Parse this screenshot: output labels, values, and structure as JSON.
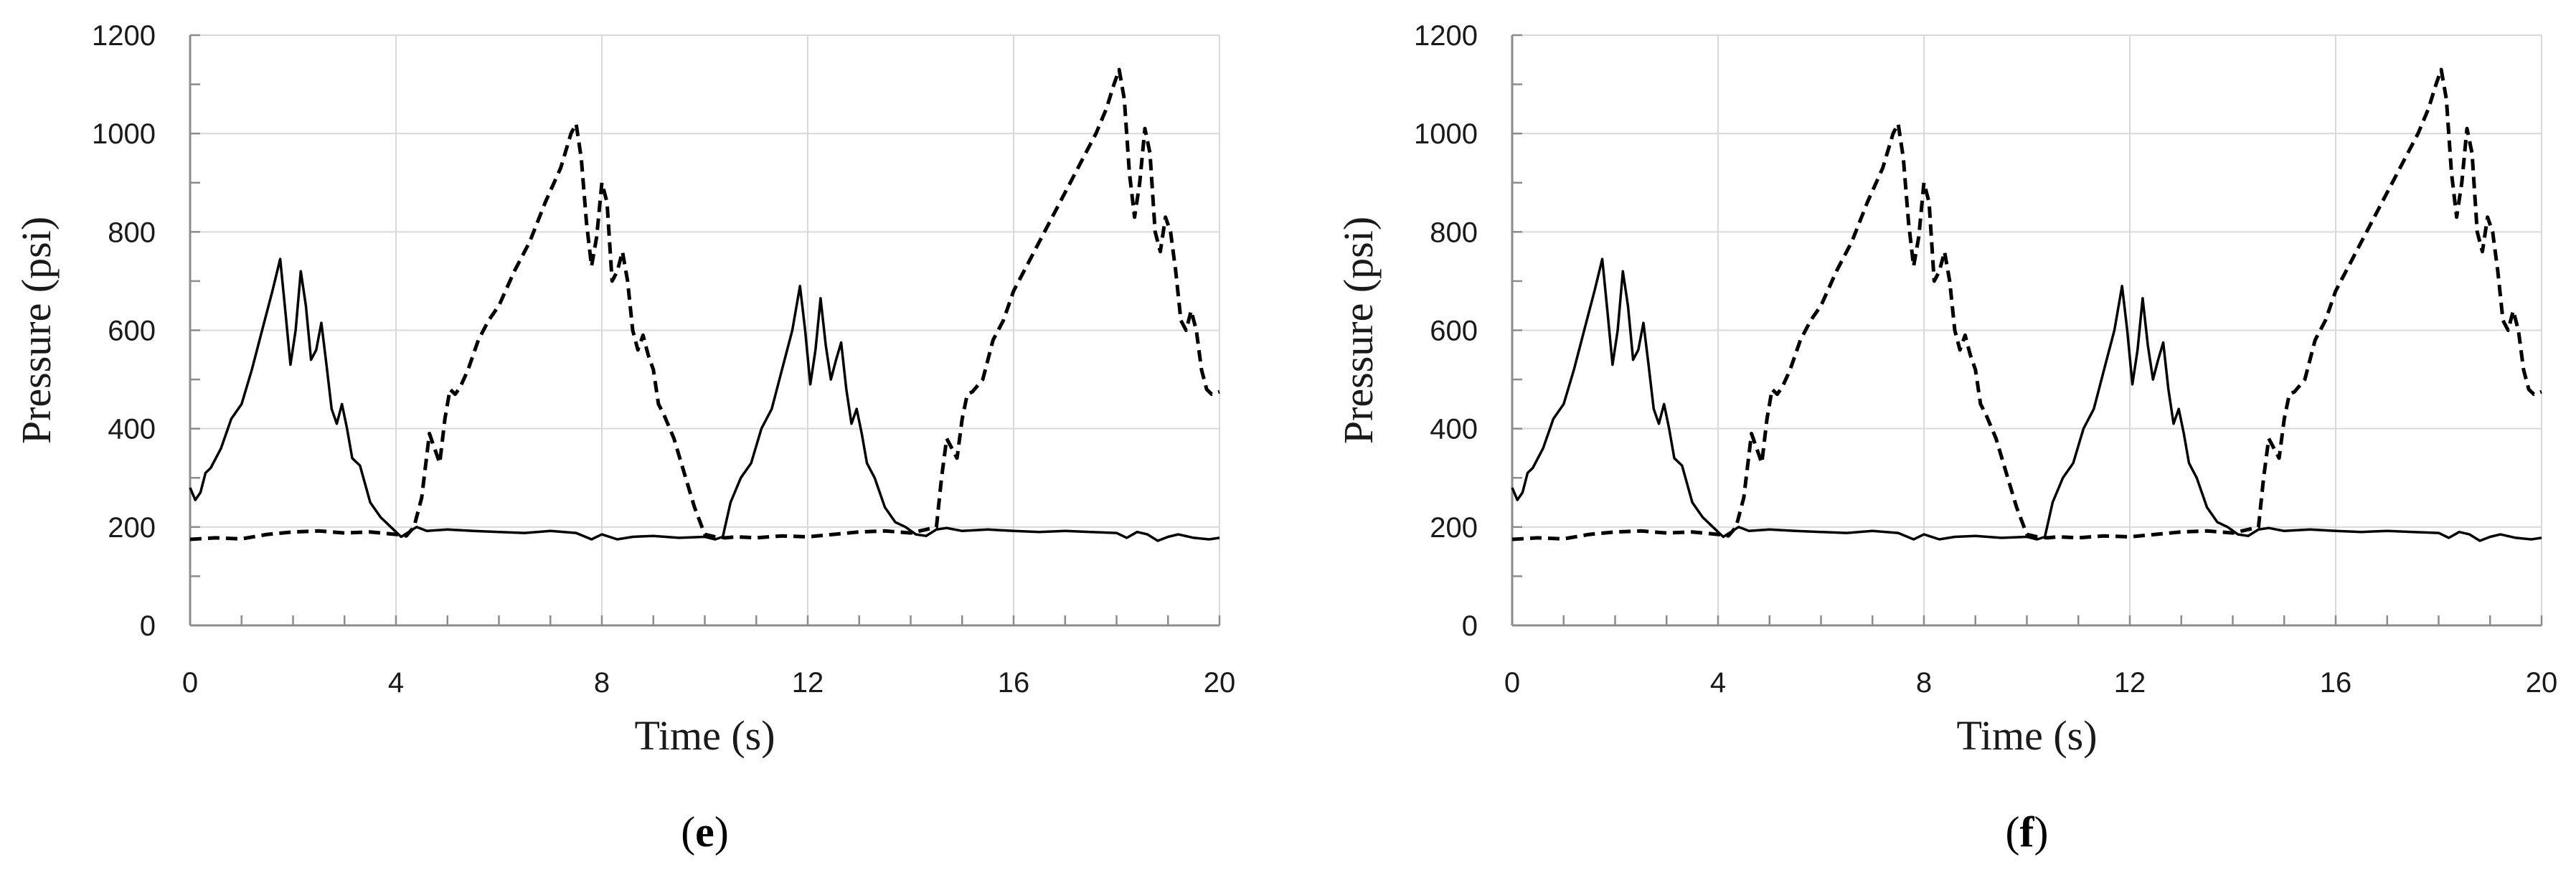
{
  "chart_data": [
    {
      "type": "line",
      "panel_label": "e",
      "xlabel": "Time (s)",
      "ylabel": "Pressure  (psi)",
      "xlim": [
        0,
        20
      ],
      "ylim": [
        0,
        1200
      ],
      "xticks": [
        0,
        4,
        8,
        12,
        16,
        20
      ],
      "yticks": [
        0,
        200,
        400,
        600,
        800,
        1000,
        1200
      ],
      "grid": true,
      "series": [
        {
          "style": "solid",
          "x": [
            0,
            0.1,
            0.2,
            0.3,
            0.4,
            0.6,
            0.8,
            1.0,
            1.2,
            1.4,
            1.6,
            1.75,
            1.85,
            1.95,
            2.05,
            2.15,
            2.25,
            2.35,
            2.45,
            2.55,
            2.65,
            2.75,
            2.85,
            2.95,
            3.05,
            3.15,
            3.3,
            3.5,
            3.7,
            3.9,
            4.1,
            4.25,
            4.4,
            4.6,
            5,
            5.5,
            6,
            6.5,
            7,
            7.5,
            7.8,
            8.0,
            8.3,
            8.6,
            9,
            9.5,
            10,
            10.2,
            10.35,
            10.5,
            10.7,
            10.9,
            11.1,
            11.3,
            11.5,
            11.7,
            11.85,
            11.95,
            12.05,
            12.15,
            12.25,
            12.35,
            12.45,
            12.55,
            12.65,
            12.75,
            12.85,
            12.95,
            13.05,
            13.15,
            13.3,
            13.5,
            13.7,
            13.9,
            14.1,
            14.3,
            14.5,
            14.7,
            15,
            15.5,
            16,
            16.5,
            17,
            17.5,
            18,
            18.2,
            18.4,
            18.6,
            18.8,
            19,
            19.2,
            19.5,
            19.8,
            20
          ],
          "y": [
            280,
            255,
            270,
            310,
            320,
            360,
            420,
            450,
            520,
            600,
            680,
            745,
            640,
            530,
            600,
            720,
            650,
            540,
            560,
            615,
            530,
            440,
            410,
            450,
            400,
            340,
            325,
            250,
            220,
            200,
            180,
            190,
            200,
            192,
            195,
            192,
            190,
            188,
            192,
            188,
            175,
            185,
            175,
            180,
            182,
            178,
            180,
            175,
            180,
            250,
            300,
            330,
            400,
            440,
            520,
            600,
            690,
            600,
            490,
            560,
            665,
            570,
            500,
            540,
            575,
            480,
            410,
            440,
            390,
            330,
            300,
            240,
            210,
            200,
            185,
            182,
            195,
            198,
            192,
            195,
            192,
            190,
            192,
            190,
            188,
            178,
            190,
            185,
            172,
            180,
            185,
            178,
            175,
            178
          ]
        },
        {
          "style": "dashed",
          "x": [
            0,
            0.5,
            1,
            1.5,
            2,
            2.5,
            3,
            3.5,
            4,
            4.2,
            4.35,
            4.5,
            4.65,
            4.75,
            4.85,
            4.95,
            5.05,
            5.15,
            5.25,
            5.4,
            5.6,
            5.8,
            6,
            6.3,
            6.6,
            6.9,
            7.2,
            7.4,
            7.5,
            7.6,
            7.7,
            7.8,
            7.9,
            8.0,
            8.1,
            8.2,
            8.3,
            8.4,
            8.5,
            8.6,
            8.7,
            8.8,
            8.9,
            9.0,
            9.1,
            9.2,
            9.4,
            9.6,
            9.8,
            10.0,
            10.2,
            10.4,
            10.6,
            11,
            11.5,
            12,
            12.5,
            13,
            13.5,
            14,
            14.3,
            14.5,
            14.6,
            14.7,
            14.8,
            14.9,
            15.0,
            15.1,
            15.2,
            15.4,
            15.6,
            15.8,
            16,
            16.4,
            16.8,
            17.2,
            17.6,
            17.8,
            17.95,
            18.05,
            18.15,
            18.25,
            18.35,
            18.45,
            18.55,
            18.65,
            18.75,
            18.85,
            18.95,
            19.05,
            19.15,
            19.25,
            19.35,
            19.45,
            19.55,
            19.65,
            19.75,
            19.85,
            20
          ],
          "y": [
            175,
            178,
            176,
            185,
            190,
            192,
            188,
            190,
            185,
            182,
            200,
            260,
            390,
            360,
            330,
            420,
            480,
            470,
            485,
            520,
            580,
            620,
            650,
            720,
            780,
            860,
            930,
            1000,
            1020,
            950,
            820,
            730,
            790,
            900,
            860,
            700,
            720,
            760,
            700,
            600,
            560,
            590,
            550,
            520,
            450,
            430,
            380,
            310,
            240,
            185,
            180,
            178,
            180,
            178,
            182,
            180,
            185,
            190,
            192,
            188,
            195,
            200,
            300,
            380,
            360,
            340,
            420,
            470,
            475,
            500,
            580,
            620,
            680,
            760,
            840,
            920,
            1000,
            1050,
            1100,
            1130,
            1070,
            920,
            830,
            900,
            1010,
            960,
            800,
            760,
            830,
            800,
            720,
            620,
            600,
            640,
            600,
            520,
            480,
            470,
            475
          ]
        }
      ]
    },
    {
      "type": "line",
      "panel_label": "f",
      "xlabel": "Time (s)",
      "ylabel": "Pressure  (psi)",
      "xlim": [
        0,
        20
      ],
      "ylim": [
        0,
        1200
      ],
      "xticks": [
        0,
        4,
        8,
        12,
        16,
        20
      ],
      "yticks": [
        0,
        200,
        400,
        600,
        800,
        1000,
        1200
      ],
      "grid": true,
      "series": [
        {
          "style": "solid",
          "x": [
            0,
            0.1,
            0.2,
            0.3,
            0.4,
            0.6,
            0.8,
            1.0,
            1.2,
            1.4,
            1.6,
            1.75,
            1.85,
            1.95,
            2.05,
            2.15,
            2.25,
            2.35,
            2.45,
            2.55,
            2.65,
            2.75,
            2.85,
            2.95,
            3.05,
            3.15,
            3.3,
            3.5,
            3.7,
            3.9,
            4.1,
            4.25,
            4.4,
            4.6,
            5,
            5.5,
            6,
            6.5,
            7,
            7.5,
            7.8,
            8.0,
            8.3,
            8.6,
            9,
            9.5,
            10,
            10.2,
            10.35,
            10.5,
            10.7,
            10.9,
            11.1,
            11.3,
            11.5,
            11.7,
            11.85,
            11.95,
            12.05,
            12.15,
            12.25,
            12.35,
            12.45,
            12.55,
            12.65,
            12.75,
            12.85,
            12.95,
            13.05,
            13.15,
            13.3,
            13.5,
            13.7,
            13.9,
            14.1,
            14.3,
            14.5,
            14.7,
            15,
            15.5,
            16,
            16.5,
            17,
            17.5,
            18,
            18.2,
            18.4,
            18.6,
            18.8,
            19,
            19.2,
            19.5,
            19.8,
            20
          ],
          "y": [
            280,
            255,
            270,
            310,
            320,
            360,
            420,
            450,
            520,
            600,
            680,
            745,
            640,
            530,
            600,
            720,
            650,
            540,
            560,
            615,
            530,
            440,
            410,
            450,
            400,
            340,
            325,
            250,
            220,
            200,
            180,
            190,
            200,
            192,
            195,
            192,
            190,
            188,
            192,
            188,
            175,
            185,
            175,
            180,
            182,
            178,
            180,
            175,
            180,
            250,
            300,
            330,
            400,
            440,
            520,
            600,
            690,
            600,
            490,
            560,
            665,
            570,
            500,
            540,
            575,
            480,
            410,
            440,
            390,
            330,
            300,
            240,
            210,
            200,
            185,
            182,
            195,
            198,
            192,
            195,
            192,
            190,
            192,
            190,
            188,
            178,
            190,
            185,
            172,
            180,
            185,
            178,
            175,
            178
          ]
        },
        {
          "style": "dashed",
          "x": [
            0,
            0.5,
            1,
            1.5,
            2,
            2.5,
            3,
            3.5,
            4,
            4.2,
            4.35,
            4.5,
            4.65,
            4.75,
            4.85,
            4.95,
            5.05,
            5.15,
            5.25,
            5.4,
            5.6,
            5.8,
            6,
            6.3,
            6.6,
            6.9,
            7.2,
            7.4,
            7.5,
            7.6,
            7.7,
            7.8,
            7.9,
            8.0,
            8.1,
            8.2,
            8.3,
            8.4,
            8.5,
            8.6,
            8.7,
            8.8,
            8.9,
            9.0,
            9.1,
            9.2,
            9.4,
            9.6,
            9.8,
            10.0,
            10.2,
            10.4,
            10.6,
            11,
            11.5,
            12,
            12.5,
            13,
            13.5,
            14,
            14.3,
            14.5,
            14.6,
            14.7,
            14.8,
            14.9,
            15.0,
            15.1,
            15.2,
            15.4,
            15.6,
            15.8,
            16,
            16.4,
            16.8,
            17.2,
            17.6,
            17.8,
            17.95,
            18.05,
            18.15,
            18.25,
            18.35,
            18.45,
            18.55,
            18.65,
            18.75,
            18.85,
            18.95,
            19.05,
            19.15,
            19.25,
            19.35,
            19.45,
            19.55,
            19.65,
            19.75,
            19.85,
            20
          ],
          "y": [
            175,
            178,
            176,
            185,
            190,
            192,
            188,
            190,
            185,
            182,
            200,
            260,
            390,
            360,
            330,
            420,
            480,
            470,
            485,
            520,
            580,
            620,
            650,
            720,
            780,
            860,
            930,
            1000,
            1020,
            950,
            820,
            730,
            790,
            900,
            860,
            700,
            720,
            760,
            700,
            600,
            560,
            590,
            550,
            520,
            450,
            430,
            380,
            310,
            240,
            185,
            180,
            178,
            180,
            178,
            182,
            180,
            185,
            190,
            192,
            188,
            195,
            200,
            300,
            380,
            360,
            340,
            420,
            470,
            475,
            500,
            580,
            620,
            680,
            760,
            840,
            920,
            1000,
            1050,
            1100,
            1130,
            1070,
            920,
            830,
            900,
            1010,
            960,
            800,
            760,
            830,
            800,
            720,
            620,
            600,
            640,
            600,
            520,
            480,
            470,
            475
          ]
        }
      ]
    }
  ]
}
